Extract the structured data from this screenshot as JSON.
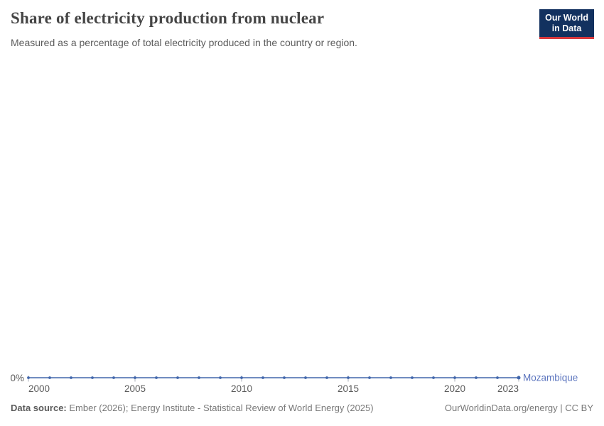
{
  "header": {
    "title": "Share of electricity production from nuclear",
    "subtitle": "Measured as a percentage of total electricity produced in the country or region.",
    "logo": {
      "line1": "Our World",
      "line2": "in Data"
    }
  },
  "chart_data": {
    "type": "line",
    "title": "Share of electricity production from nuclear",
    "xlabel": "",
    "ylabel": "",
    "x": [
      2000,
      2001,
      2002,
      2003,
      2004,
      2005,
      2006,
      2007,
      2008,
      2009,
      2010,
      2011,
      2012,
      2013,
      2014,
      2015,
      2016,
      2017,
      2018,
      2019,
      2020,
      2021,
      2022,
      2023
    ],
    "series": [
      {
        "name": "Mozambique",
        "values": [
          0,
          0,
          0,
          0,
          0,
          0,
          0,
          0,
          0,
          0,
          0,
          0,
          0,
          0,
          0,
          0,
          0,
          0,
          0,
          0,
          0,
          0,
          0,
          0
        ]
      }
    ],
    "x_ticks": [
      2000,
      2005,
      2010,
      2015,
      2020,
      2023
    ],
    "y_ticks": [
      "0%"
    ],
    "ylim": [
      0,
      100
    ],
    "grid": false,
    "legend_position": "end-of-line-label",
    "unit": "%"
  },
  "footer": {
    "data_source_label": "Data source:",
    "data_source_text": "Ember (2026); Energy Institute - Statistical Review of World Energy (2025)",
    "url": "OurWorldinData.org/energy",
    "separator": " | ",
    "license": "CC BY"
  },
  "colors": {
    "background": "#ffffff",
    "line": "#4166ac",
    "entity_label": "#5b74be",
    "axis_text": "#5b5b5b",
    "tick": "#a9afb8",
    "title_text": "#454545",
    "subtitle_text": "#5b5b5b",
    "footer_text": "#787878",
    "footer_bold_text": "#5b5b5b",
    "logo_bg": "#12315f",
    "logo_stripe": "#d7383d"
  }
}
